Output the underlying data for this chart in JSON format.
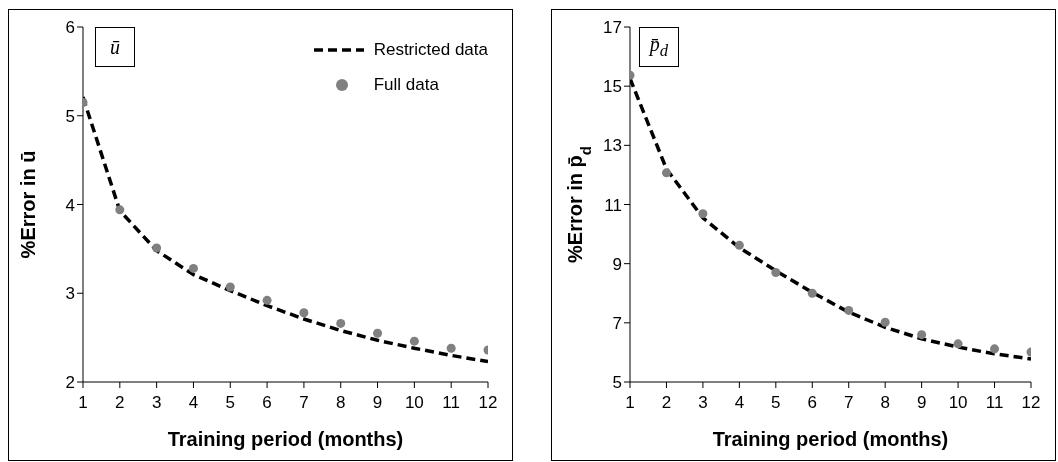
{
  "chart_data": [
    {
      "type": "line",
      "xlabel": "Training period (months)",
      "ylabel": "%Error in ū",
      "annotations": [
        "ū"
      ],
      "x": [
        1,
        2,
        3,
        4,
        5,
        6,
        7,
        8,
        9,
        10,
        11,
        12
      ],
      "xlim": [
        1,
        12
      ],
      "xticks": [
        1,
        2,
        3,
        4,
        5,
        6,
        7,
        8,
        9,
        10,
        11,
        12
      ],
      "ylim": [
        2,
        6
      ],
      "yticks": [
        2,
        3,
        4,
        5,
        6
      ],
      "grid": false,
      "legend": "top right",
      "series": [
        {
          "name": "Restricted data",
          "type": "line",
          "color": "#000000",
          "marker": "none",
          "line_style": "dashed",
          "values": [
            5.21,
            3.93,
            3.48,
            3.21,
            3.03,
            2.86,
            2.71,
            2.58,
            2.47,
            2.38,
            2.3,
            2.23
          ]
        },
        {
          "name": "Full data",
          "type": "scatter",
          "color": "#808080",
          "marker": "circle",
          "values": [
            5.15,
            3.94,
            3.51,
            3.28,
            3.07,
            2.92,
            2.78,
            2.66,
            2.55,
            2.46,
            2.38,
            2.36
          ]
        }
      ]
    },
    {
      "type": "line",
      "xlabel": "Training period (months)",
      "ylabel": "%Error in p̄$_{d}$",
      "annotations": [
        "p̄$_{d}$"
      ],
      "x": [
        1,
        2,
        3,
        4,
        5,
        6,
        7,
        8,
        9,
        10,
        11,
        12
      ],
      "xlim": [
        1,
        12
      ],
      "xticks": [
        1,
        2,
        3,
        4,
        5,
        6,
        7,
        8,
        9,
        10,
        11,
        12
      ],
      "ylim": [
        5,
        17
      ],
      "yticks": [
        5,
        7,
        9,
        11,
        13,
        15,
        17
      ],
      "grid": false,
      "series": [
        {
          "type": "line",
          "color": "#000000",
          "marker": "none",
          "line_style": "dashed",
          "values": [
            15.26,
            12.2,
            10.55,
            9.54,
            8.76,
            8.03,
            7.36,
            6.85,
            6.46,
            6.18,
            5.95,
            5.78
          ]
        },
        {
          "type": "scatter",
          "color": "#808080",
          "marker": "circle",
          "values": [
            15.37,
            12.07,
            10.69,
            9.62,
            8.7,
            8.0,
            7.42,
            7.02,
            6.6,
            6.29,
            6.12,
            6.01
          ]
        }
      ]
    }
  ]
}
